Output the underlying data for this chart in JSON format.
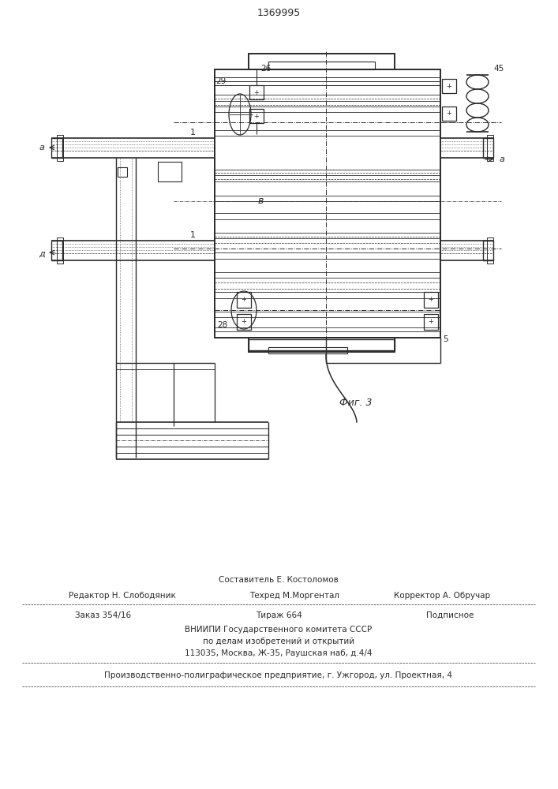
{
  "title": "1369995",
  "fig_label": "Фиг. 3",
  "bg": "#ffffff",
  "lc": "#2a2a2a",
  "footer": {
    "f1": "Составитель Е. Костоломов",
    "f2l": "Редактор Н. Слободяник",
    "f2m": "Техред М.Моргентал",
    "f2r": "Корректор А. Обручар",
    "f3l": "Заказ 354/16",
    "f3m": "Тираж 664",
    "f3r": "Подписное",
    "f4": "ВНИИПИ Государственного комитета СССР",
    "f5": "по делам изобретений и открытий",
    "f6": "113035, Москва, Ж-35, Раушская наб, д.4/4",
    "f7": "Производственно-полиграфическое предприятие, г. Ужгород, ул. Проектная, 4"
  }
}
